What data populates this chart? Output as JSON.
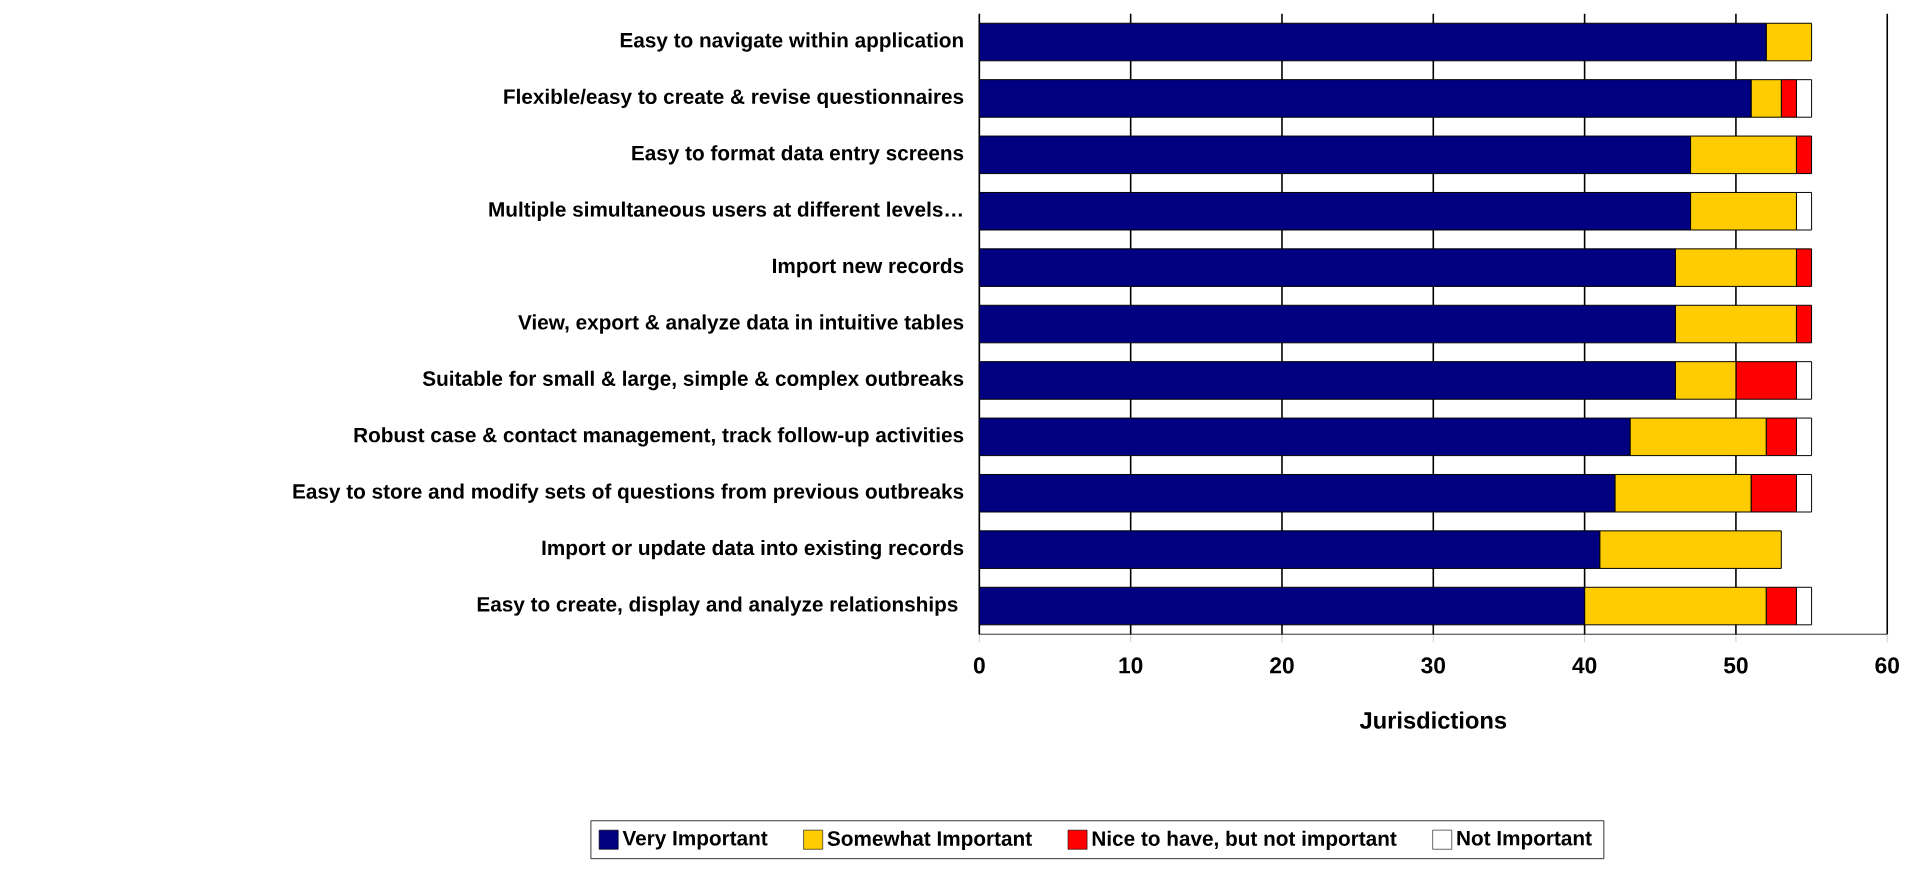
{
  "chart_data": {
    "type": "bar",
    "orientation": "horizontal",
    "stacked": true,
    "xlabel": "Jurisdictions",
    "categories": [
      "Easy to navigate within application",
      "Flexible/easy to create & revise questionnaires",
      "Easy to format data entry screens",
      "Multiple simultaneous users at different levels…",
      "Import new records",
      "View, export & analyze data in intuitive tables",
      "Suitable for small & large, simple & complex outbreaks",
      "Robust case & contact management, track follow-up activities",
      "Easy to store and modify sets of questions from previous outbreaks",
      "Import or update data into existing records",
      "Easy to create, display and analyze relationships "
    ],
    "series": [
      {
        "name": "Very Important",
        "color": "#000080",
        "values": [
          52,
          51,
          47,
          47,
          46,
          46,
          46,
          43,
          42,
          41,
          40
        ]
      },
      {
        "name": "Somewhat Important",
        "color": "#ffcc00",
        "values": [
          3,
          2,
          7,
          7,
          8,
          8,
          4,
          9,
          9,
          12,
          12
        ]
      },
      {
        "name": "Nice to have, but not important",
        "color": "#ff0000",
        "values": [
          0,
          1,
          1,
          0,
          1,
          1,
          4,
          2,
          3,
          0,
          2
        ]
      },
      {
        "name": "Not Important",
        "color": "#ffffff",
        "values": [
          0,
          1,
          0,
          1,
          0,
          0,
          1,
          1,
          1,
          0,
          1
        ]
      }
    ],
    "xlim": [
      0,
      60
    ],
    "xticks": [
      0,
      10,
      20,
      30,
      40,
      50,
      60
    ],
    "grid": "x",
    "legend": "bottom"
  }
}
